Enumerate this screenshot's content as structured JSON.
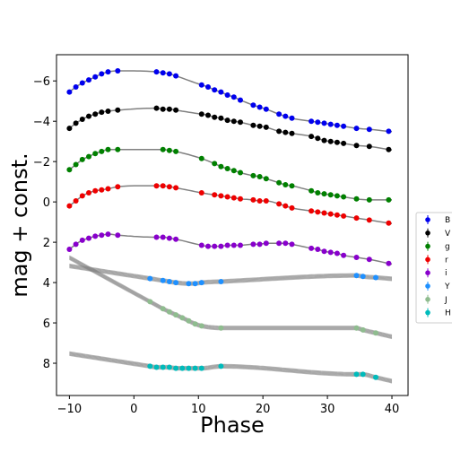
{
  "chart_data": {
    "type": "scatter",
    "title": "",
    "xlabel": "Phase",
    "ylabel": "mag + const.",
    "xlim": [
      -12,
      42.5
    ],
    "ylim": [
      9.6,
      -7.3
    ],
    "y_inverted": true,
    "xticks": [
      -10,
      0,
      10,
      20,
      30,
      40
    ],
    "yticks": [
      -6,
      -4,
      -2,
      0,
      2,
      4,
      6,
      8
    ],
    "ytick_labels": [
      "−6",
      "−4",
      "−2",
      "0",
      "2",
      "4",
      "6",
      "8"
    ],
    "grid": false,
    "legend_position": "right, outside plot",
    "model_color": "#808080",
    "series": [
      {
        "name": "B",
        "color": "#0000ee",
        "x": [
          -10,
          -9,
          -8,
          -7,
          -6,
          -5,
          -4,
          -2.5,
          3.5,
          4.5,
          5.5,
          6.5,
          10.5,
          11.5,
          12.5,
          13.5,
          14.5,
          15.5,
          16.5,
          18.5,
          19.5,
          20.5,
          22.5,
          23.5,
          24.5,
          27.5,
          28.5,
          29.5,
          30.5,
          31.5,
          32.5,
          34.5,
          36.5,
          39.5
        ],
        "y": [
          -5.45,
          -5.7,
          -5.9,
          -6.05,
          -6.2,
          -6.35,
          -6.45,
          -6.5,
          -6.45,
          -6.4,
          -6.35,
          -6.25,
          -5.8,
          -5.7,
          -5.55,
          -5.45,
          -5.3,
          -5.2,
          -5.05,
          -4.8,
          -4.7,
          -4.6,
          -4.35,
          -4.25,
          -4.15,
          -4.0,
          -3.95,
          -3.9,
          -3.85,
          -3.8,
          -3.75,
          -3.65,
          -3.6,
          -3.5
        ]
      },
      {
        "name": "V",
        "color": "#000000",
        "x": [
          -10,
          -9,
          -8,
          -7,
          -6,
          -5,
          -4,
          -2.5,
          3.5,
          4.5,
          5.5,
          6.5,
          10.5,
          11.5,
          12.5,
          13.5,
          14.5,
          15.5,
          16.5,
          18.5,
          19.5,
          20.5,
          22.5,
          23.5,
          24.5,
          27.5,
          28.5,
          29.5,
          30.5,
          31.5,
          32.5,
          34.5,
          36.5,
          39.5
        ],
        "y": [
          -3.65,
          -3.9,
          -4.1,
          -4.25,
          -4.35,
          -4.45,
          -4.5,
          -4.55,
          -4.65,
          -4.6,
          -4.6,
          -4.55,
          -4.35,
          -4.3,
          -4.2,
          -4.15,
          -4.05,
          -4.0,
          -3.95,
          -3.8,
          -3.75,
          -3.7,
          -3.5,
          -3.45,
          -3.4,
          -3.25,
          -3.15,
          -3.05,
          -3.0,
          -2.95,
          -2.9,
          -2.8,
          -2.75,
          -2.6
        ]
      },
      {
        "name": "g",
        "color": "#008000",
        "x": [
          -10,
          -9,
          -8,
          -7,
          -6,
          -5,
          -4,
          -2.5,
          4.5,
          5.5,
          6.5,
          10.5,
          12.5,
          13.5,
          14.5,
          15.5,
          16.5,
          18.5,
          19.5,
          20.5,
          22.5,
          23.5,
          24.5,
          27.5,
          28.5,
          29.5,
          30.5,
          31.5,
          32.5,
          34.5,
          36.5,
          39.5
        ],
        "y": [
          -1.6,
          -1.85,
          -2.1,
          -2.25,
          -2.4,
          -2.5,
          -2.6,
          -2.6,
          -2.6,
          -2.55,
          -2.5,
          -2.15,
          -1.9,
          -1.75,
          -1.65,
          -1.55,
          -1.45,
          -1.3,
          -1.25,
          -1.15,
          -0.95,
          -0.85,
          -0.8,
          -0.55,
          -0.45,
          -0.4,
          -0.35,
          -0.3,
          -0.25,
          -0.15,
          -0.1,
          -0.1
        ]
      },
      {
        "name": "r",
        "color": "#ee0000",
        "x": [
          -10,
          -9,
          -8,
          -7,
          -6,
          -5,
          -4,
          -2.5,
          3.5,
          4.5,
          5.5,
          6.5,
          10.5,
          12.5,
          13.5,
          14.5,
          15.5,
          16.5,
          18.5,
          19.5,
          20.5,
          22.5,
          23.5,
          24.5,
          27.5,
          28.5,
          29.5,
          30.5,
          31.5,
          32.5,
          34.5,
          36.5,
          39.5
        ],
        "y": [
          0.2,
          -0.05,
          -0.3,
          -0.45,
          -0.55,
          -0.6,
          -0.65,
          -0.75,
          -0.8,
          -0.8,
          -0.75,
          -0.7,
          -0.45,
          -0.35,
          -0.3,
          -0.25,
          -0.2,
          -0.15,
          -0.1,
          -0.05,
          -0.05,
          0.1,
          0.2,
          0.3,
          0.45,
          0.5,
          0.55,
          0.6,
          0.65,
          0.7,
          0.8,
          0.9,
          1.05
        ]
      },
      {
        "name": "i",
        "color": "#8800cc",
        "x": [
          -10,
          -9,
          -8,
          -7,
          -6,
          -5,
          -4,
          -2.5,
          3.5,
          4.5,
          5.5,
          6.5,
          10.5,
          11.5,
          12.5,
          13.5,
          14.5,
          15.5,
          16.5,
          18.5,
          19.5,
          20.5,
          22.5,
          23.5,
          24.5,
          27.5,
          28.5,
          29.5,
          30.5,
          31.5,
          32.5,
          34.5,
          36.5,
          39.5
        ],
        "y": [
          2.35,
          2.1,
          1.9,
          1.8,
          1.7,
          1.65,
          1.6,
          1.65,
          1.75,
          1.75,
          1.8,
          1.85,
          2.15,
          2.2,
          2.2,
          2.2,
          2.15,
          2.15,
          2.15,
          2.1,
          2.1,
          2.05,
          2.05,
          2.05,
          2.1,
          2.3,
          2.35,
          2.45,
          2.5,
          2.55,
          2.65,
          2.75,
          2.85,
          3.05
        ]
      },
      {
        "name": "Y",
        "color": "#1e90ff",
        "x": [
          2.5,
          4.5,
          5.5,
          6.5,
          8.5,
          9.5,
          10.5,
          13.5,
          34.5,
          35.5,
          37.5
        ],
        "y": [
          3.8,
          3.9,
          3.95,
          4.0,
          4.05,
          4.05,
          4.0,
          3.95,
          3.65,
          3.7,
          3.75
        ]
      },
      {
        "name": "J",
        "color": "#8fbc8f",
        "x": [
          2.5,
          4.5,
          5.5,
          6.5,
          7.5,
          8.5,
          9.5,
          10.5,
          13.5,
          34.5,
          35.5,
          37.5
        ],
        "y": [
          4.95,
          5.3,
          5.45,
          5.6,
          5.75,
          5.9,
          6.05,
          6.15,
          6.25,
          6.25,
          6.35,
          6.5
        ]
      },
      {
        "name": "H",
        "color": "#00bbbb",
        "x": [
          2.5,
          3.5,
          4.5,
          5.5,
          6.5,
          7.5,
          8.5,
          9.5,
          10.5,
          13.5,
          34.5,
          35.5,
          37.5
        ],
        "y": [
          8.15,
          8.2,
          8.2,
          8.2,
          8.25,
          8.25,
          8.25,
          8.25,
          8.25,
          8.15,
          8.55,
          8.55,
          8.7
        ]
      }
    ]
  }
}
